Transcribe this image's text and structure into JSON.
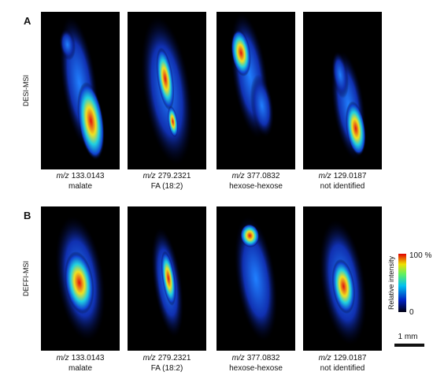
{
  "panels": [
    {
      "label": "A",
      "method": "DESI-MSI",
      "images": [
        {
          "mz_unit": "m/z",
          "mz": "133.0143",
          "compound": "malate"
        },
        {
          "mz_unit": "m/z",
          "mz": "279.2321",
          "compound": "FA (18:2)"
        },
        {
          "mz_unit": "m/z",
          "mz": "377.0832",
          "compound": "hexose-hexose"
        },
        {
          "mz_unit": "m/z",
          "mz": "129.0187",
          "compound": "not identified"
        }
      ]
    },
    {
      "label": "B",
      "method": "DEFFI-MSI",
      "images": [
        {
          "mz_unit": "m/z",
          "mz": "133.0143",
          "compound": "malate"
        },
        {
          "mz_unit": "m/z",
          "mz": "279.2321",
          "compound": "FA (18:2)"
        },
        {
          "mz_unit": "m/z",
          "mz": "377.0832",
          "compound": "hexose-hexose"
        },
        {
          "mz_unit": "m/z",
          "mz": "129.0187",
          "compound": "not identified"
        }
      ]
    }
  ],
  "colorbar": {
    "title": "Relative intensity",
    "max_label": "100 %",
    "min_label": "0"
  },
  "scale_bar": {
    "label": "1 mm"
  }
}
